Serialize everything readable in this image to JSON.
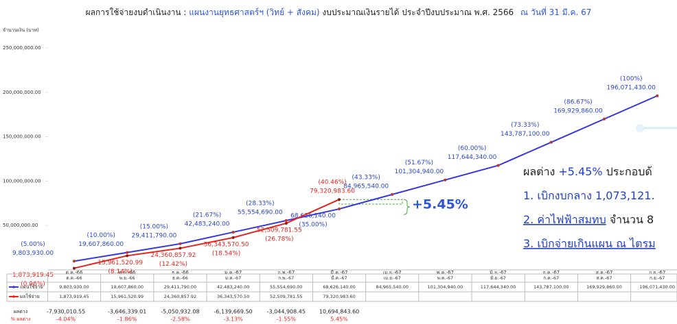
{
  "chart_data": {
    "type": "line",
    "title": [
      "ผลการใช้จ่ายงบดำเนินงาน :",
      "แผนงานยุทธศาสตร์ฯ (วิทย์ + สังคม)",
      "งบประมาณเงินรายได้ ประจำปีงบประมาณ พ.ศ. 2566",
      "ณ วันที่ 31 มี.ค. 67"
    ],
    "ylabel": "จำนวนเงิน (บาท)",
    "categories": [
      "ต.ค.-66",
      "พ.ย.-66",
      "ธ.ค.-66",
      "ม.ค.-67",
      "ก.พ.-67",
      "มี.ค.-67",
      "เม.ย.-67",
      "พ.ค.-67",
      "มิ.ย.-67",
      "ก.ค.-67",
      "ส.ค.-67",
      "ก.ย.-67"
    ],
    "ylim": [
      0,
      250000000
    ],
    "yticks": [
      {
        "value": 50000000,
        "label": "50,000,000.00"
      },
      {
        "value": 100000000,
        "label": "100,000,000.00"
      },
      {
        "value": 150000000,
        "label": "150,000,000.00"
      },
      {
        "value": 200000000,
        "label": "200,000,000.00"
      },
      {
        "value": 250000000,
        "label": "250,000,000.00"
      }
    ],
    "series": [
      {
        "name": "แผนใช้จ่าย",
        "color": "#3636e6",
        "values": [
          9803930,
          19607860,
          29411790,
          42483240,
          55554690,
          68626140,
          84965540,
          101304940,
          117644340,
          143787100,
          169929860,
          196071430
        ],
        "value_labels": [
          "9,803,930.00",
          "19,607,860.00",
          "29,411,790.00",
          "42,483,240.00",
          "55,554,690.00",
          "68,626,140.00",
          "84,965,540.00",
          "101,304,940.00",
          "117,644,340.00",
          "143,787,100.00",
          "169,929,860.00",
          "196,071,430.00"
        ],
        "percent_labels": [
          "(5.00%)",
          "(10.00%)",
          "(15.00%)",
          "(21.67%)",
          "(28.33%)",
          "(35.00%)",
          "(43.33%)",
          "(51.67%)",
          "(60.00%)",
          "(73.33%)",
          "(86.67%)",
          "(100%)"
        ]
      },
      {
        "name": "ผลใช้จ่าย",
        "color": "#e6231e",
        "values": [
          1873919.45,
          15961520.99,
          24360857.92,
          36343570.5,
          52509781.55,
          79320983.6,
          null,
          null,
          null,
          null,
          null,
          null
        ],
        "value_labels": [
          "1,873,919.45",
          "15,961,520.99",
          "24,360,857.92",
          "36,343,570.50",
          "52,509,781.55",
          "79,320,983.60",
          null,
          null,
          null,
          null,
          null,
          null
        ],
        "percent_labels": [
          "(0.96%)",
          "(8.14%)",
          "(12.42%)",
          "(18.54%)",
          "(26.78%)",
          "(40.46%)",
          null,
          null,
          null,
          null,
          null,
          null
        ]
      }
    ],
    "diff": {
      "label": "ผลต่าง",
      "values": [
        -7930010.55,
        -3646339.01,
        -5050932.08,
        -6139669.5,
        -3044908.45,
        10694843.6
      ],
      "value_labels": [
        "-7,930,010.55",
        "-3,646,339.01",
        "-5,050,932.08",
        "-6,139,669.50",
        "-3,044,908.45",
        "10,694,843.60"
      ]
    },
    "diff_pct": {
      "label": "% ผลต่าง",
      "values": [
        -4.04,
        -1.86,
        -2.58,
        -3.13,
        -1.55,
        5.45
      ],
      "value_labels": [
        "-4.04%",
        "-1.86%",
        "-2.58%",
        "-3.13%",
        "-1.55%",
        "5.45%"
      ]
    },
    "annotation": "+5.45%",
    "notes": [
      [
        "ผลต่าง",
        "+5.45%",
        "ประกอบด้"
      ],
      [
        "1. เบิกงบกลาง 1,073,121."
      ],
      [
        "2. ค่าไฟฟ้าสมทบ",
        "จำนวน 8"
      ],
      [
        "3. เบิกจ่ายเกินแผน ณ ไตรม"
      ]
    ]
  }
}
